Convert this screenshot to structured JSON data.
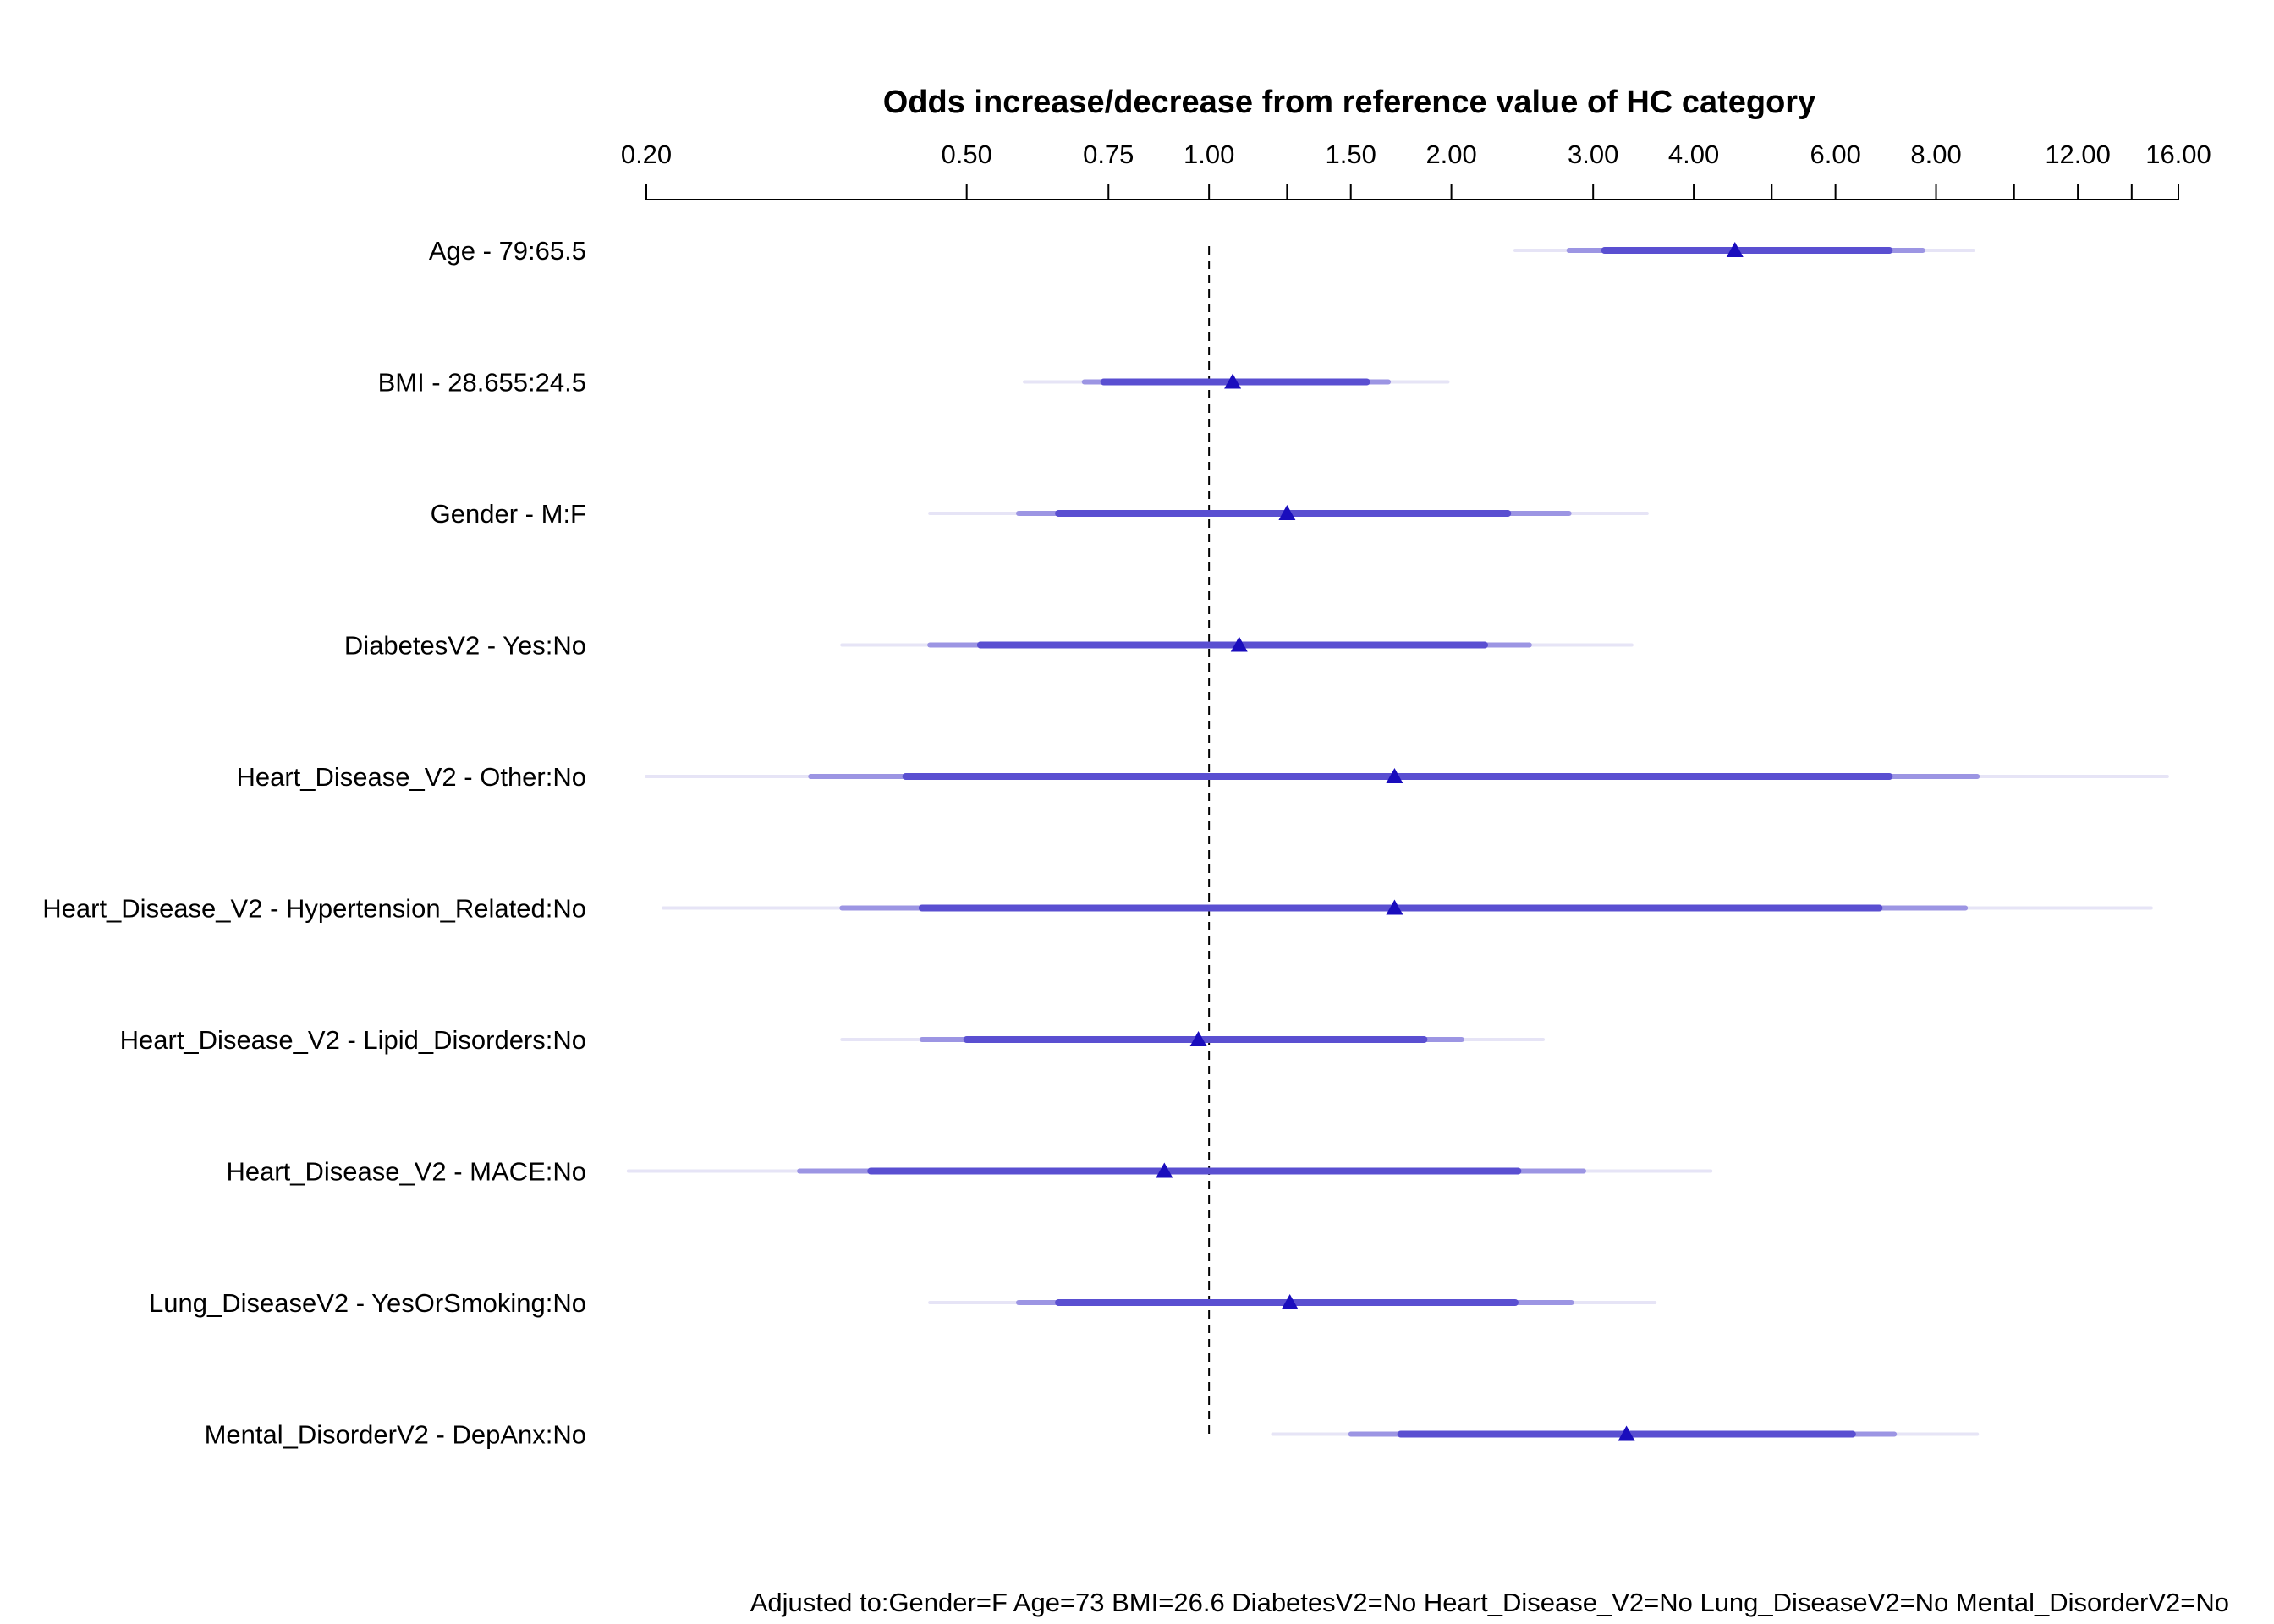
{
  "chart_data": {
    "type": "forest",
    "title": "Odds increase/decrease from reference value of HC category",
    "scale": "log",
    "xlim": [
      0.2,
      16.0
    ],
    "tick_values": [
      0.2,
      0.5,
      0.75,
      1.0,
      1.25,
      1.5,
      2.0,
      3.0,
      4.0,
      5.0,
      6.0,
      8.0,
      10.0,
      12.0,
      14.0,
      16.0
    ],
    "tick_labels": [
      "0.20",
      "0.50",
      "0.75",
      "1.00",
      "",
      "1.50",
      "2.00",
      "3.00",
      "4.00",
      "",
      "6.00",
      "8.00",
      "",
      "12.00",
      "",
      "16.00"
    ],
    "reference_line": 1.0,
    "rows": [
      {
        "label": "Age - 79:65.5",
        "estimate": 4.5,
        "ci": [
          [
            3.1,
            7.0
          ],
          [
            2.8,
            7.7
          ],
          [
            2.4,
            8.9
          ]
        ]
      },
      {
        "label": "BMI - 28.655:24.5",
        "estimate": 1.07,
        "ci": [
          [
            0.74,
            1.57
          ],
          [
            0.7,
            1.67
          ],
          [
            0.59,
            1.98
          ]
        ]
      },
      {
        "label": "Gender - M:F",
        "estimate": 1.25,
        "ci": [
          [
            0.65,
            2.35
          ],
          [
            0.58,
            2.8
          ],
          [
            0.45,
            3.5
          ]
        ]
      },
      {
        "label": "DiabetesV2 - Yes:No",
        "estimate": 1.09,
        "ci": [
          [
            0.52,
            2.2
          ],
          [
            0.45,
            2.5
          ],
          [
            0.35,
            3.35
          ]
        ]
      },
      {
        "label": "Heart_Disease_V2 - Other:No",
        "estimate": 1.7,
        "ci": [
          [
            0.42,
            7.0
          ],
          [
            0.32,
            9.0
          ],
          [
            0.2,
            15.5
          ]
        ]
      },
      {
        "label": "Heart_Disease_V2 - Hypertension_Related:No",
        "estimate": 1.7,
        "ci": [
          [
            0.44,
            6.8
          ],
          [
            0.35,
            8.7
          ],
          [
            0.21,
            14.8
          ]
        ]
      },
      {
        "label": "Heart_Disease_V2 - Lipid_Disorders:No",
        "estimate": 0.97,
        "ci": [
          [
            0.5,
            1.85
          ],
          [
            0.44,
            2.06
          ],
          [
            0.35,
            2.6
          ]
        ]
      },
      {
        "label": "Heart_Disease_V2 - MACE:No",
        "estimate": 0.88,
        "ci": [
          [
            0.38,
            2.42
          ],
          [
            0.31,
            2.92
          ],
          [
            0.19,
            4.2
          ]
        ]
      },
      {
        "label": "Lung_DiseaseV2 - YesOrSmoking:No",
        "estimate": 1.26,
        "ci": [
          [
            0.65,
            2.4
          ],
          [
            0.58,
            2.82
          ],
          [
            0.45,
            3.58
          ]
        ]
      },
      {
        "label": "Mental_DisorderV2 - DepAnx:No",
        "estimate": 3.3,
        "ci": [
          [
            1.73,
            6.3
          ],
          [
            1.5,
            7.1
          ],
          [
            1.2,
            9.0
          ]
        ]
      }
    ],
    "ci_colors": [
      "#5a4fd1",
      "#9c95e3",
      "#e6e4f6"
    ],
    "marker_color": "#1a0dbd"
  },
  "footnote": "Adjusted to:Gender=F Age=73 BMI=26.6 DiabetesV2=No Heart_Disease_V2=No Lung_DiseaseV2=No Mental_DisorderV2=No"
}
